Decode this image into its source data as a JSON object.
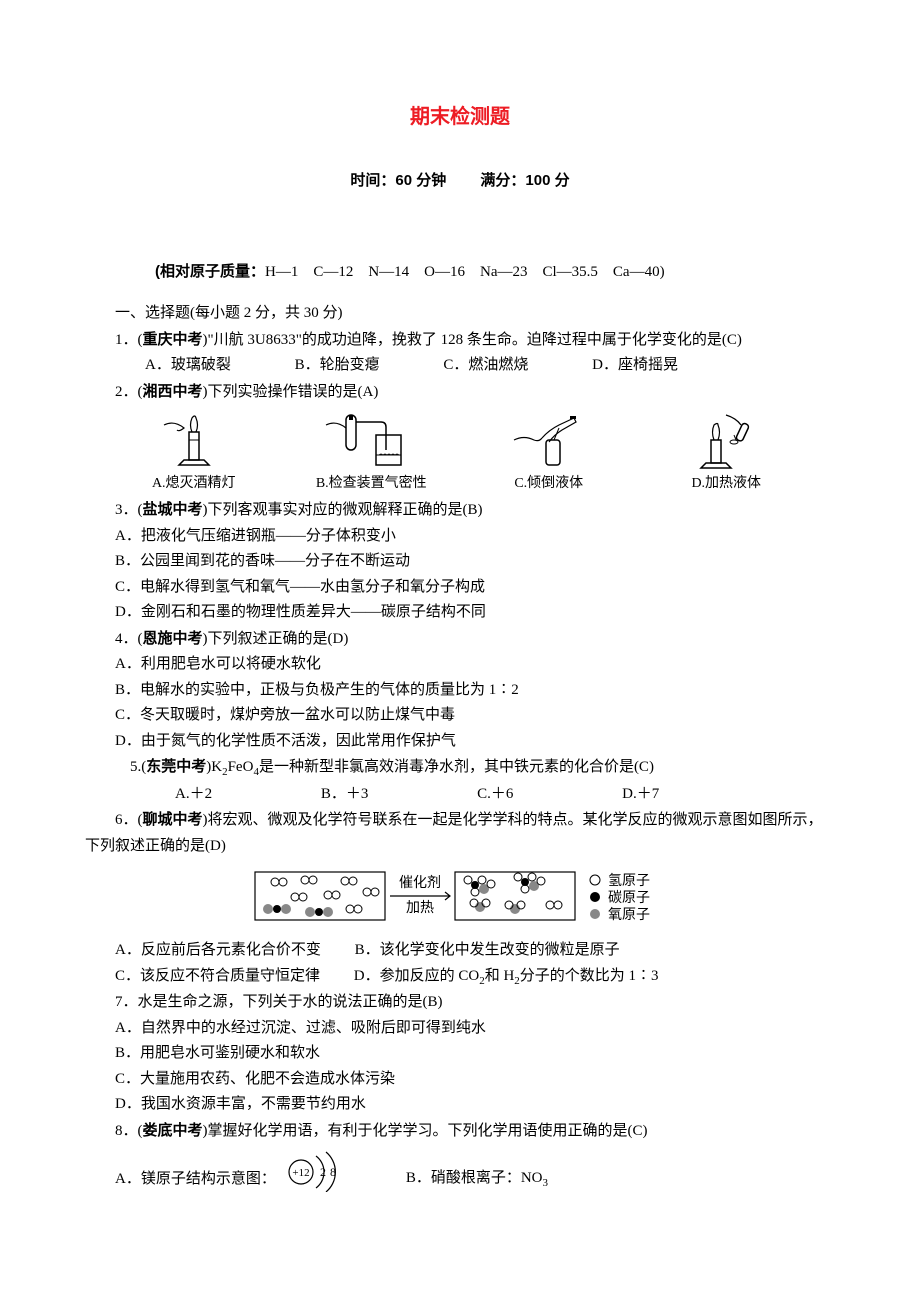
{
  "title": "期末检测题",
  "subtitle_time": "时间：60 分钟",
  "subtitle_score": "满分：100 分",
  "atomic_mass_label": "(相对原子质量：",
  "atomic_mass_values": "H—1　C—12　N—14　O—16　Na—23　Cl—35.5　Ca—40)",
  "section1_heading": "一、选择题(每小题 2 分，共 30 分)",
  "q1": {
    "stem_prefix": "1．(",
    "source": "重庆中考",
    "stem_suffix": ")\"川航 3U8633\"的成功迫降，挽救了 128 条生命。迫降过程中属于化学变化的是(C)",
    "A": "A．玻璃破裂",
    "B": "B．轮胎变瘪",
    "C": "C．燃油燃烧",
    "D": "D．座椅摇晃"
  },
  "q2": {
    "stem_prefix": "2．(",
    "source": "湘西中考",
    "stem_suffix": ")下列实验操作错误的是(A)",
    "img_captions": {
      "A": "A.熄灭酒精灯",
      "B": "B.检查装置气密性",
      "C": "C.倾倒液体",
      "D": "D.加热液体"
    }
  },
  "q3": {
    "stem_prefix": "3．(",
    "source": "盐城中考",
    "stem_suffix": ")下列客观事实对应的微观解释正确的是(B)",
    "A": "A．把液化气压缩进钢瓶——分子体积变小",
    "B": "B．公园里闻到花的香味——分子在不断运动",
    "C": "C．电解水得到氢气和氧气——水由氢分子和氧分子构成",
    "D": "D．金刚石和石墨的物理性质差异大——碳原子结构不同"
  },
  "q4": {
    "stem_prefix": "4．(",
    "source": "恩施中考",
    "stem_suffix": ")下列叙述正确的是(D)",
    "A": "A．利用肥皂水可以将硬水软化",
    "B": "B．电解水的实验中，正极与负极产生的气体的质量比为 1∶2",
    "C": "C．冬天取暖时，煤炉旁放一盆水可以防止煤气中毒",
    "D": "D．由于氮气的化学性质不活泼，因此常用作保护气"
  },
  "q5": {
    "stem_prefix": "5.(",
    "source": "东莞中考",
    "stem_html": ")K<span class=\"sub\">2</span>FeO<span class=\"sub\">4</span>是一种新型非氯高效消毒净水剂，其中铁元素的化合价是(C)",
    "A": "A.＋2",
    "B": "B．＋3",
    "C": "C.＋6",
    "D": "D.＋7"
  },
  "q6": {
    "stem_prefix": "6．(",
    "source": "聊城中考",
    "stem_suffix": ")将宏观、微观及化学符号联系在一起是化学学科的特点。某化学反应的微观示意图如图所示，下列叙述正确的是(D)",
    "reaction_labels": {
      "top": "催化剂",
      "bottom": "加热"
    },
    "legend": {
      "H": "氢原子",
      "C": "碳原子",
      "O": "氧原子"
    },
    "A": "A．反应前后各元素化合价不变",
    "B": "B．该化学变化中发生改变的微粒是原子",
    "C": "C．该反应不符合质量守恒定律",
    "D_html": "D．参加反应的 CO<span class=\"sub\">2</span>和 H<span class=\"sub\">2</span>分子的个数比为 1∶3"
  },
  "q7": {
    "stem": "7．水是生命之源，下列关于水的说法正确的是(B)",
    "A": "A．自然界中的水经过沉淀、过滤、吸附后即可得到纯水",
    "B": "B．用肥皂水可鉴别硬水和软水",
    "C": "C．大量施用农药、化肥不会造成水体污染",
    "D": "D．我国水资源丰富，不需要节约用水"
  },
  "q8": {
    "stem_prefix": "8．(",
    "source": "娄底中考",
    "stem_suffix": ")掌握好化学用语，有利于化学学习。下列化学用语使用正确的是(C)",
    "A": "A．镁原子结构示意图：",
    "B_html": "B．硝酸根离子：NO<span class=\"sub\">3</span>",
    "diagram": {
      "center": "+12",
      "shell1": "2",
      "shell2": "8"
    }
  },
  "colors": {
    "title_color": "#ed1c24",
    "text_color": "#000000",
    "background": "#ffffff"
  }
}
